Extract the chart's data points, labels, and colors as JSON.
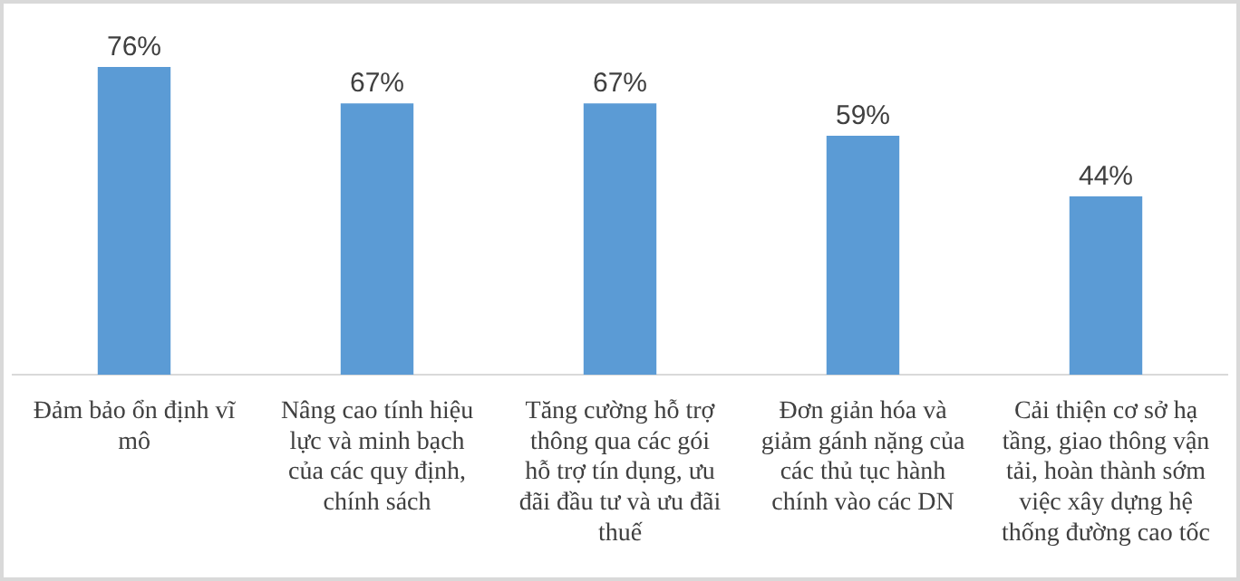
{
  "chart_data": {
    "type": "bar",
    "categories": [
      "Đảm bảo ổn định vĩ mô",
      "Nâng cao tính hiệu lực và minh bạch của các quy định, chính sách",
      "Tăng cường hỗ trợ thông qua các gói hỗ trợ tín dụng, ưu đãi đầu tư và ưu đãi thuế",
      "Đơn giản hóa và giảm gánh nặng của các thủ tục hành chính vào các DN",
      "Cải thiện cơ sở hạ tầng, giao thông vận tải, hoàn thành sớm việc xây dựng hệ thống đường cao tốc"
    ],
    "values": [
      76,
      67,
      67,
      59,
      44
    ],
    "value_labels": [
      "76%",
      "67%",
      "67%",
      "59%",
      "44%"
    ],
    "color": "#5b9bd5",
    "grid": false,
    "legend": false
  }
}
